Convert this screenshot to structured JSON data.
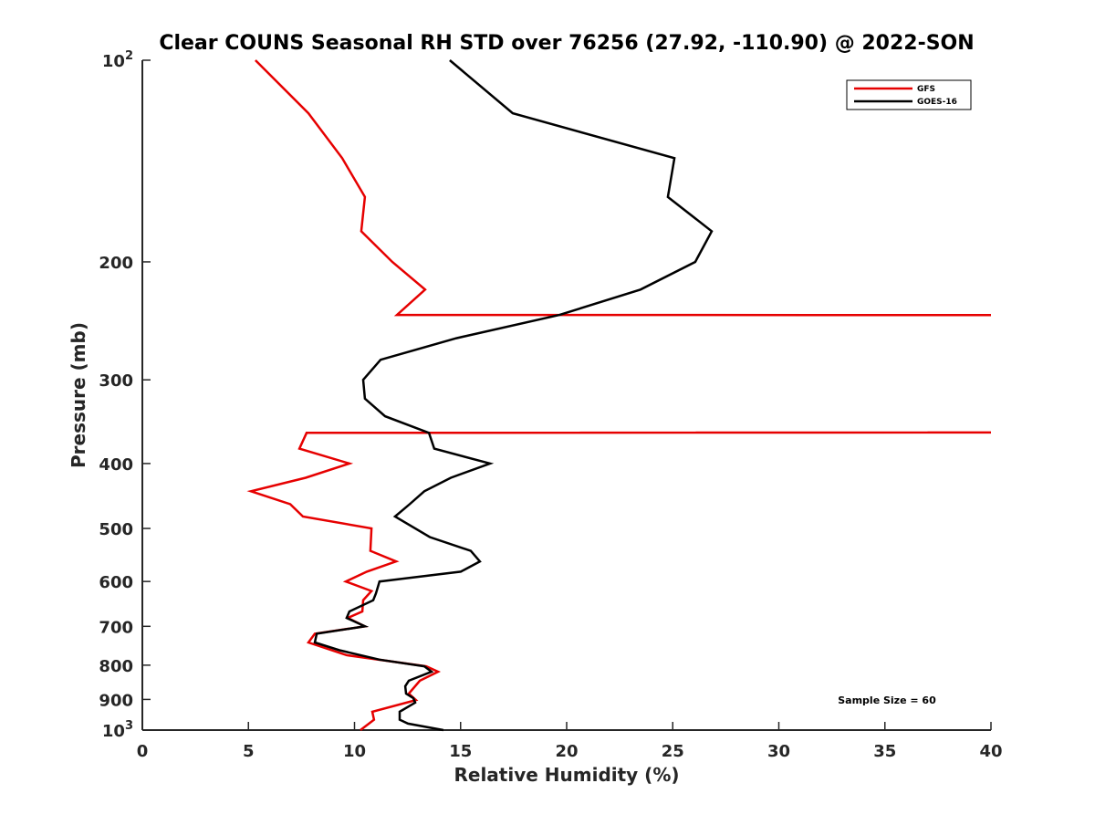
{
  "chart_data": {
    "type": "line",
    "title": "Clear COUNS Seasonal RH STD over 76256 (27.92, -110.90) @ 2022-SON",
    "xlabel": "Relative Humidity (%)",
    "ylabel": "Pressure (mb)",
    "xlim": [
      0,
      40
    ],
    "ylim": [
      100,
      1000
    ],
    "yscale": "log",
    "y_reversed": true,
    "grid": false,
    "x_ticks": [
      0,
      5,
      10,
      15,
      20,
      25,
      30,
      35,
      40
    ],
    "x_tick_labels": [
      "0",
      "5",
      "10",
      "15",
      "20",
      "25",
      "30",
      "35",
      "40"
    ],
    "y_ticks": [
      100,
      200,
      300,
      400,
      500,
      600,
      700,
      800,
      900,
      1000
    ],
    "y_tick_labels": [
      {
        "base": "10",
        "exp": "2"
      },
      {
        "text": "200"
      },
      {
        "text": "300"
      },
      {
        "text": "400"
      },
      {
        "text": "500"
      },
      {
        "text": "600"
      },
      {
        "text": "700"
      },
      {
        "text": "800"
      },
      {
        "text": "900"
      },
      {
        "base": "10",
        "exp": "3"
      }
    ],
    "legend": {
      "placement": "top-right",
      "entries": [
        "GFS",
        "GOES-16"
      ]
    },
    "annotation": "Sample Size = 60",
    "series": [
      {
        "name": "GFS",
        "color": "#e60000",
        "pressure": [
          100,
          120,
          140,
          160,
          180,
          200,
          220,
          240,
          241,
          355,
          360,
          380,
          400,
          420,
          440,
          460,
          480,
          500,
          540,
          560,
          580,
          600,
          620,
          640,
          665,
          680,
          700,
          718,
          740,
          773,
          803,
          818,
          844,
          882,
          902,
          939,
          965,
          1000
        ],
        "rh": [
          5.33,
          7.83,
          9.42,
          10.49,
          10.32,
          11.78,
          13.33,
          12.0,
          300,
          300,
          7.74,
          7.4,
          9.76,
          7.7,
          5.12,
          6.97,
          7.57,
          10.8,
          10.75,
          11.96,
          10.58,
          9.59,
          10.8,
          10.41,
          10.37,
          9.68,
          10.49,
          8.13,
          7.83,
          9.63,
          13.38,
          13.94,
          13.08,
          12.56,
          12.9,
          10.84,
          10.92,
          10.28
        ]
      },
      {
        "name": "GOES-16",
        "color": "#000000",
        "pressure": [
          100,
          120,
          140,
          160,
          180,
          200,
          220,
          240,
          260,
          280,
          300,
          320,
          340,
          360,
          380,
          400,
          420,
          440,
          460,
          480,
          515,
          540,
          560,
          580,
          600,
          625,
          640,
          665,
          680,
          700,
          718,
          740,
          760,
          785,
          803,
          818,
          844,
          860,
          882,
          896,
          910,
          939,
          965,
          978,
          1000
        ],
        "rh": [
          14.49,
          17.46,
          25.08,
          24.77,
          26.84,
          26.06,
          23.48,
          19.66,
          14.8,
          11.23,
          10.41,
          10.49,
          11.44,
          13.51,
          13.76,
          16.39,
          14.54,
          13.29,
          12.6,
          11.91,
          13.55,
          15.48,
          15.91,
          15.01,
          11.18,
          11.01,
          10.88,
          9.76,
          9.63,
          10.49,
          8.22,
          8.13,
          9.29,
          11.18,
          13.29,
          13.63,
          12.56,
          12.39,
          12.43,
          12.77,
          12.86,
          12.13,
          12.13,
          12.52,
          14.19
        ]
      }
    ]
  }
}
